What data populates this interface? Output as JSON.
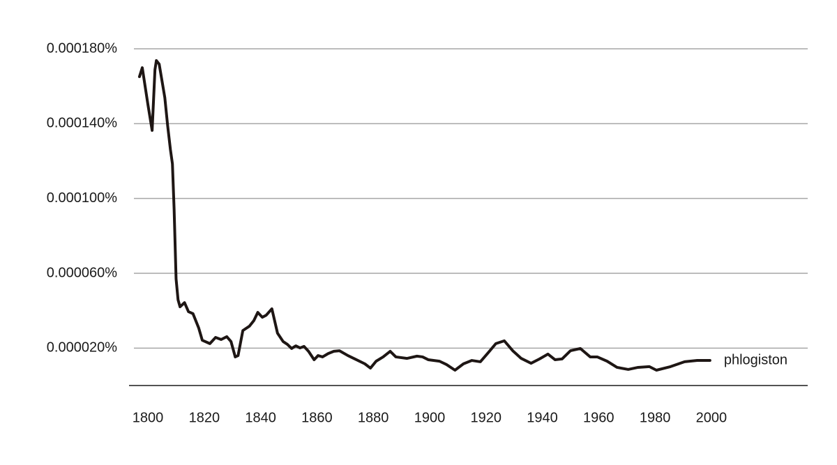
{
  "chart_data": {
    "type": "line",
    "x": [
      1797,
      1798,
      1800,
      1801.5,
      1802.5,
      1803,
      1804,
      1806,
      1807,
      1808,
      1808.7,
      1809.3,
      1810,
      1810.7,
      1811.4,
      1813,
      1814.4,
      1816,
      1818,
      1819.3,
      1822,
      1824,
      1826,
      1828,
      1829.5,
      1831,
      1832,
      1833.7,
      1836,
      1837.6,
      1839,
      1840.6,
      1842,
      1844,
      1846,
      1848,
      1849.5,
      1851,
      1852.5,
      1854,
      1855.4,
      1857,
      1859,
      1860.4,
      1862,
      1864,
      1866,
      1868,
      1871,
      1874,
      1877,
      1879,
      1881,
      1883.5,
      1886,
      1888,
      1892,
      1895.5,
      1897.5,
      1899.5,
      1903.5,
      1906,
      1909,
      1912,
      1915,
      1918,
      1921,
      1923.5,
      1926.5,
      1929.5,
      1932.5,
      1936,
      1939,
      1942,
      1944.5,
      1947,
      1950,
      1953.5,
      1957,
      1959.5,
      1963,
      1966.5,
      1970.5,
      1974,
      1978,
      1980.5,
      1985.5,
      1990.5,
      1995,
      1999.5
    ],
    "series": [
      {
        "name": "phlogiston",
        "color": "#1e1614",
        "values": [
          0.0001651,
          0.0001699,
          0.0001502,
          0.0001364,
          0.0001688,
          0.0001737,
          0.0001718,
          0.0001539,
          0.000139,
          0.000126,
          0.0001185,
          9.43e-05,
          5.7e-05,
          4.58e-05,
          4.21e-05,
          4.43e-05,
          3.95e-05,
          3.84e-05,
          3.09e-05,
          2.42e-05,
          2.24e-05,
          2.57e-05,
          2.46e-05,
          2.61e-05,
          2.35e-05,
          1.53e-05,
          1.6e-05,
          2.94e-05,
          3.17e-05,
          3.47e-05,
          3.91e-05,
          3.65e-05,
          3.76e-05,
          4.1e-05,
          2.8e-05,
          2.35e-05,
          2.2e-05,
          1.98e-05,
          2.12e-05,
          2.01e-05,
          2.09e-05,
          1.83e-05,
          1.38e-05,
          1.6e-05,
          1.53e-05,
          1.71e-05,
          1.83e-05,
          1.86e-05,
          1.6e-05,
          1.38e-05,
          1.16e-05,
          9.3e-06,
          1.3e-05,
          1.53e-05,
          1.83e-05,
          1.53e-05,
          1.45e-05,
          1.57e-05,
          1.53e-05,
          1.38e-05,
          1.3e-05,
          1.12e-05,
          8.2e-06,
          1.16e-05,
          1.34e-05,
          1.27e-05,
          1.79e-05,
          2.24e-05,
          2.39e-05,
          1.86e-05,
          1.45e-05,
          1.19e-05,
          1.42e-05,
          1.68e-05,
          1.38e-05,
          1.42e-05,
          1.86e-05,
          1.98e-05,
          1.53e-05,
          1.53e-05,
          1.3e-05,
          9.7e-06,
          8.6e-06,
          9.7e-06,
          1.01e-05,
          8.2e-06,
          1.01e-05,
          1.27e-05,
          1.34e-05,
          1.34e-05
        ]
      }
    ],
    "xlim": [
      1793.3,
      2034.2
    ],
    "xticks": [
      1800,
      1820,
      1840,
      1860,
      1880,
      1900,
      1920,
      1940,
      1960,
      1980,
      2000
    ],
    "ylim": [
      0,
      0.00018
    ],
    "yticks": [
      {
        "value": 2e-05,
        "label": "0.000020%"
      },
      {
        "value": 6e-05,
        "label": "0.000060%"
      },
      {
        "value": 0.0001,
        "label": "0.000100%"
      },
      {
        "value": 0.00014,
        "label": "0.000140%"
      },
      {
        "value": 0.00018,
        "label": "0.000180%"
      }
    ],
    "grid": true
  }
}
